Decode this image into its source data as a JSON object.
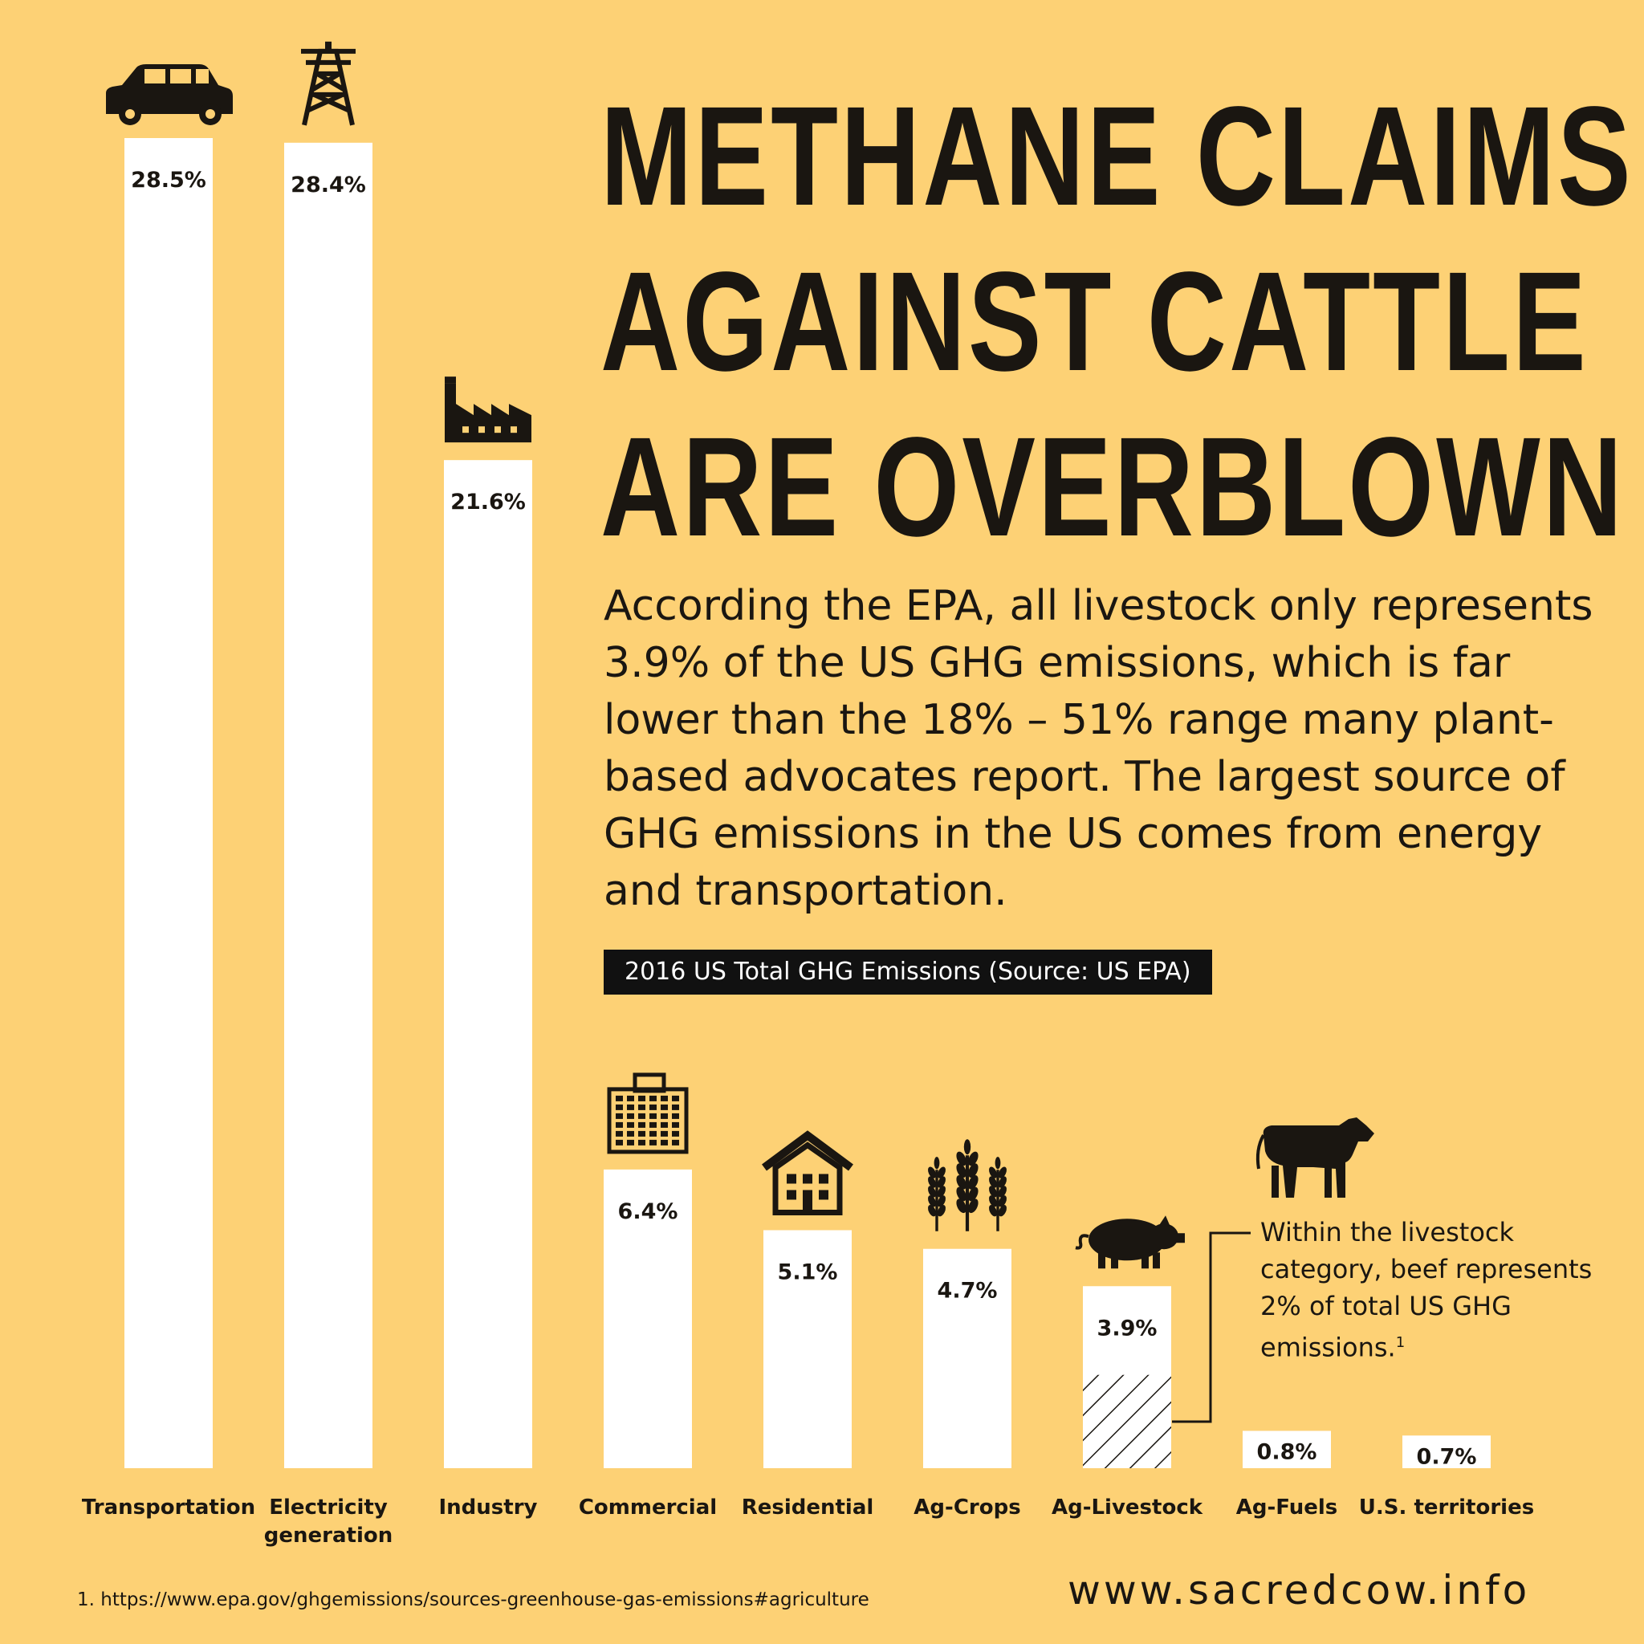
{
  "headline": {
    "line1": "METHANE CLAIMS",
    "line2": "AGAINST CATTLE",
    "line3": "ARE OVERBLOWN"
  },
  "intro": "According the EPA, all livestock only represents 3.9% of the US GHG emissions, which is far lower than the 18% – 51% range many plant-based advocates report. The largest source of GHG emissions in the US comes from energy and transportation.",
  "source_label": "2016 US Total GHG Emissions (Source: US EPA)",
  "beef_note": {
    "text": "Within the livestock category, beef represents 2% of total US GHG emissions.",
    "ref": "1"
  },
  "footnote": "1. https://www.epa.gov/ghgemissions/sources-greenhouse-gas-emissions#agriculture",
  "website": "www.sacredcow.info",
  "chart_data": {
    "type": "bar",
    "title": "2016 US Total GHG Emissions (Source: US EPA)",
    "unit": "%",
    "categories": [
      "Transportation",
      "Electricity generation",
      "Industry",
      "Commercial",
      "Residential",
      "Ag-Crops",
      "Ag-Livestock",
      "Ag-Fuels",
      "U.S. territories"
    ],
    "values": [
      28.5,
      28.4,
      21.6,
      6.4,
      5.1,
      4.7,
      3.9,
      0.8,
      0.7
    ],
    "value_labels": [
      "28.5%",
      "28.4%",
      "21.6%",
      "6.4%",
      "5.1%",
      "4.7%",
      "3.9%",
      "0.8%",
      "0.7%"
    ],
    "icons": [
      "car-icon",
      "power-tower-icon",
      "factory-icon",
      "office-building-icon",
      "house-icon",
      "wheat-icon",
      "pig-icon",
      "",
      ""
    ],
    "highlight": {
      "category": "Ag-Livestock",
      "beef_value": 2.0,
      "pattern": "hatched",
      "extra_icon": "cow-icon"
    },
    "ylim": [
      0,
      28.5
    ],
    "bar_color": "#FFFFFF",
    "background_color": "#FDD175",
    "text_color": "#1A1611"
  }
}
